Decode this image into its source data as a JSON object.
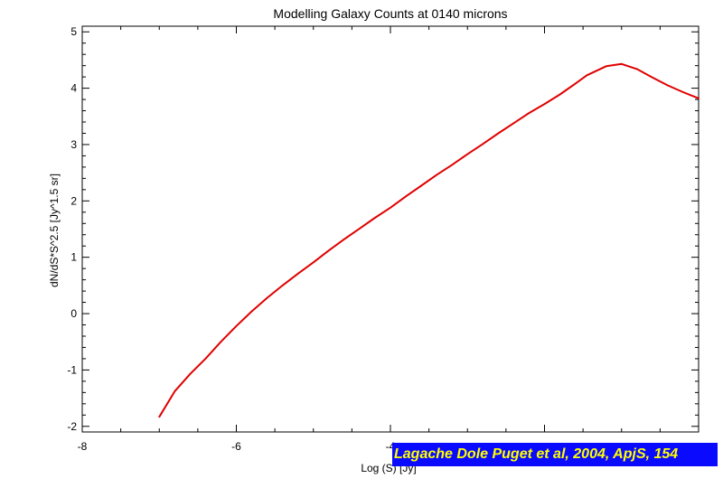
{
  "chart_data": {
    "type": "line",
    "title": "Modelling Galaxy Counts at 0140 microns",
    "xlabel": "Log (S) [Jy]",
    "ylabel": "dN/dS*S^2.5 [Jy^1.5 sr]",
    "xlim": [
      -8,
      0
    ],
    "ylim": [
      -2.1,
      5.1
    ],
    "x_ticks": [
      -8,
      -6,
      -4,
      -2,
      0
    ],
    "x_tick_labels": [
      "-8",
      "-6",
      "-4",
      "",
      ""
    ],
    "y_ticks": [
      -2,
      -1,
      0,
      1,
      2,
      3,
      4,
      5
    ],
    "y_tick_labels": [
      "-2",
      "-1",
      "0",
      "1",
      "2",
      "3",
      "4",
      "5"
    ],
    "grid": false,
    "series": [
      {
        "color": "#e00000",
        "x": [
          -7.0,
          -6.8,
          -6.6,
          -6.4,
          -6.2,
          -6.0,
          -5.8,
          -5.6,
          -5.4,
          -5.2,
          -5.0,
          -4.8,
          -4.6,
          -4.4,
          -4.2,
          -4.0,
          -3.8,
          -3.6,
          -3.4,
          -3.2,
          -3.0,
          -2.8,
          -2.6,
          -2.4,
          -2.2,
          -2.0,
          -1.8,
          -1.6,
          -1.45,
          -1.2,
          -1.0,
          -0.8,
          -0.6,
          -0.4,
          -0.2,
          0.0
        ],
        "y": [
          -1.83,
          -1.38,
          -1.07,
          -0.8,
          -0.5,
          -0.22,
          0.04,
          0.28,
          0.5,
          0.71,
          0.91,
          1.12,
          1.32,
          1.51,
          1.7,
          1.88,
          2.08,
          2.27,
          2.46,
          2.64,
          2.83,
          3.01,
          3.2,
          3.38,
          3.56,
          3.72,
          3.89,
          4.08,
          4.23,
          4.39,
          4.43,
          4.34,
          4.19,
          4.05,
          3.93,
          3.82
        ]
      }
    ]
  },
  "credit": {
    "text": "Lagache Dole Puget et al, 2004, ApjS, 154"
  },
  "colors": {
    "background": "#ffffff",
    "axes": "#000000",
    "curve": "#e00000",
    "credit_background": "#0a0aff",
    "credit_text": "#ffff00"
  }
}
